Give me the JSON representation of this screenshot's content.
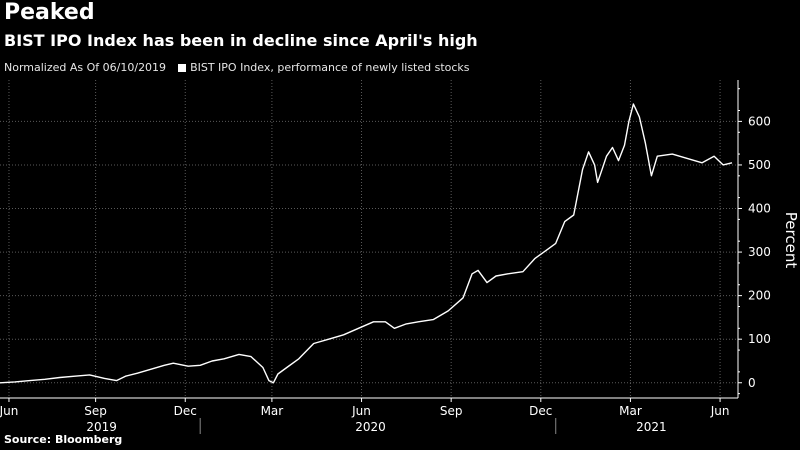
{
  "header": {
    "title": "Peaked",
    "subtitle": "BIST IPO Index has been in decline since April's high"
  },
  "legend": {
    "normalized_note": "Normalized As Of 06/10/2019",
    "series_label": "BIST IPO Index, performance of newly listed stocks"
  },
  "footer": {
    "source": "Source: Bloomberg"
  },
  "colors": {
    "background": "#000000",
    "line": "#ffffff",
    "grid": "#5a5a5a",
    "text": "#ffffff"
  },
  "chart_data": {
    "type": "line",
    "title": "BIST IPO Index has been in decline since April's high",
    "ylabel": "Percent",
    "xlabel": "",
    "ylim": [
      -35,
      695
    ],
    "xlim": [
      0,
      24.7
    ],
    "y_ticks": [
      0,
      100,
      200,
      300,
      400,
      500,
      600
    ],
    "x_ticks": [
      {
        "label": "Jun",
        "x": 0.3
      },
      {
        "label": "Sep",
        "x": 3.2
      },
      {
        "label": "Dec",
        "x": 6.2
      },
      {
        "label": "Mar",
        "x": 9.1
      },
      {
        "label": "Jun",
        "x": 12.1
      },
      {
        "label": "Sep",
        "x": 15.1
      },
      {
        "label": "Dec",
        "x": 18.1
      },
      {
        "label": "Mar",
        "x": 21.1
      },
      {
        "label": "Jun",
        "x": 24.1
      }
    ],
    "year_labels": [
      {
        "label": "2019",
        "x": 3.4
      },
      {
        "label": "2020",
        "x": 12.4
      },
      {
        "label": "2021",
        "x": 21.8
      }
    ],
    "year_separators": [
      6.7,
      18.6
    ],
    "grid": true,
    "series": [
      {
        "name": "BIST IPO Index, performance of newly listed stocks",
        "x": [
          0,
          0.5,
          1.0,
          1.5,
          2.0,
          2.5,
          3.0,
          3.5,
          3.9,
          4.2,
          4.6,
          5.0,
          5.5,
          5.8,
          6.3,
          6.7,
          7.1,
          7.5,
          8.0,
          8.4,
          8.8,
          9.0,
          9.15,
          9.3,
          9.6,
          10.0,
          10.5,
          11.0,
          11.5,
          12.0,
          12.5,
          12.9,
          13.2,
          13.6,
          14.0,
          14.5,
          15.0,
          15.5,
          15.8,
          16.0,
          16.3,
          16.6,
          17.0,
          17.5,
          17.9,
          18.3,
          18.6,
          18.9,
          19.2,
          19.5,
          19.7,
          19.9,
          20.0,
          20.15,
          20.3,
          20.5,
          20.7,
          20.9,
          21.05,
          21.2,
          21.4,
          21.6,
          21.8,
          22.0,
          22.5,
          23.0,
          23.5,
          23.9,
          24.2,
          24.5
        ],
        "values": [
          0,
          2,
          5,
          8,
          12,
          15,
          18,
          10,
          5,
          15,
          22,
          30,
          40,
          45,
          38,
          40,
          50,
          55,
          65,
          60,
          35,
          5,
          0,
          20,
          35,
          55,
          90,
          100,
          110,
          125,
          140,
          140,
          125,
          135,
          140,
          145,
          165,
          195,
          250,
          258,
          230,
          245,
          250,
          255,
          285,
          305,
          320,
          370,
          385,
          490,
          530,
          500,
          460,
          490,
          520,
          540,
          510,
          545,
          600,
          640,
          610,
          550,
          475,
          520,
          525,
          515,
          505,
          520,
          500,
          505
        ]
      }
    ]
  }
}
